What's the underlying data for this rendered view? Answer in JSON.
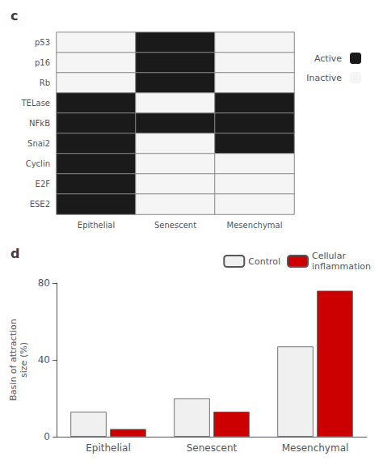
{
  "chart_data": [
    {
      "type": "heatmap",
      "title": "c",
      "x": [
        "Epithelial",
        "Senescent",
        "Mesenchymal"
      ],
      "y": [
        "p53",
        "p16",
        "Rb",
        "TELase",
        "NFkB",
        "Snai2",
        "Cyclin",
        "E2F",
        "ESE2"
      ],
      "cells": [
        [
          0,
          1,
          0
        ],
        [
          0,
          1,
          0
        ],
        [
          0,
          1,
          0
        ],
        [
          1,
          0,
          1
        ],
        [
          1,
          1,
          1
        ],
        [
          1,
          0,
          1
        ],
        [
          1,
          0,
          0
        ],
        [
          1,
          0,
          0
        ],
        [
          1,
          0,
          0
        ]
      ],
      "levels": [
        {
          "value": 1,
          "label": "Active",
          "color": "#1a1a1a"
        },
        {
          "value": 0,
          "label": "Inactive",
          "color": "#f5f5f5"
        }
      ],
      "grid": false
    },
    {
      "type": "bar",
      "title": "d",
      "categories": [
        "Epithelial",
        "Senescent",
        "Mesenchymal"
      ],
      "series": [
        {
          "name": "Control",
          "color": "#f0f0f0",
          "values": [
            13,
            20,
            47
          ]
        },
        {
          "name": "Cellular\ninflammation",
          "color": "#CC0000",
          "values": [
            4,
            13,
            76
          ]
        }
      ],
      "ylabel": "Basin of attraction\nsize (%)",
      "ylim": [
        0,
        80
      ],
      "yticks": [
        0,
        40,
        80
      ],
      "grid": false,
      "legend": "upper right"
    }
  ]
}
